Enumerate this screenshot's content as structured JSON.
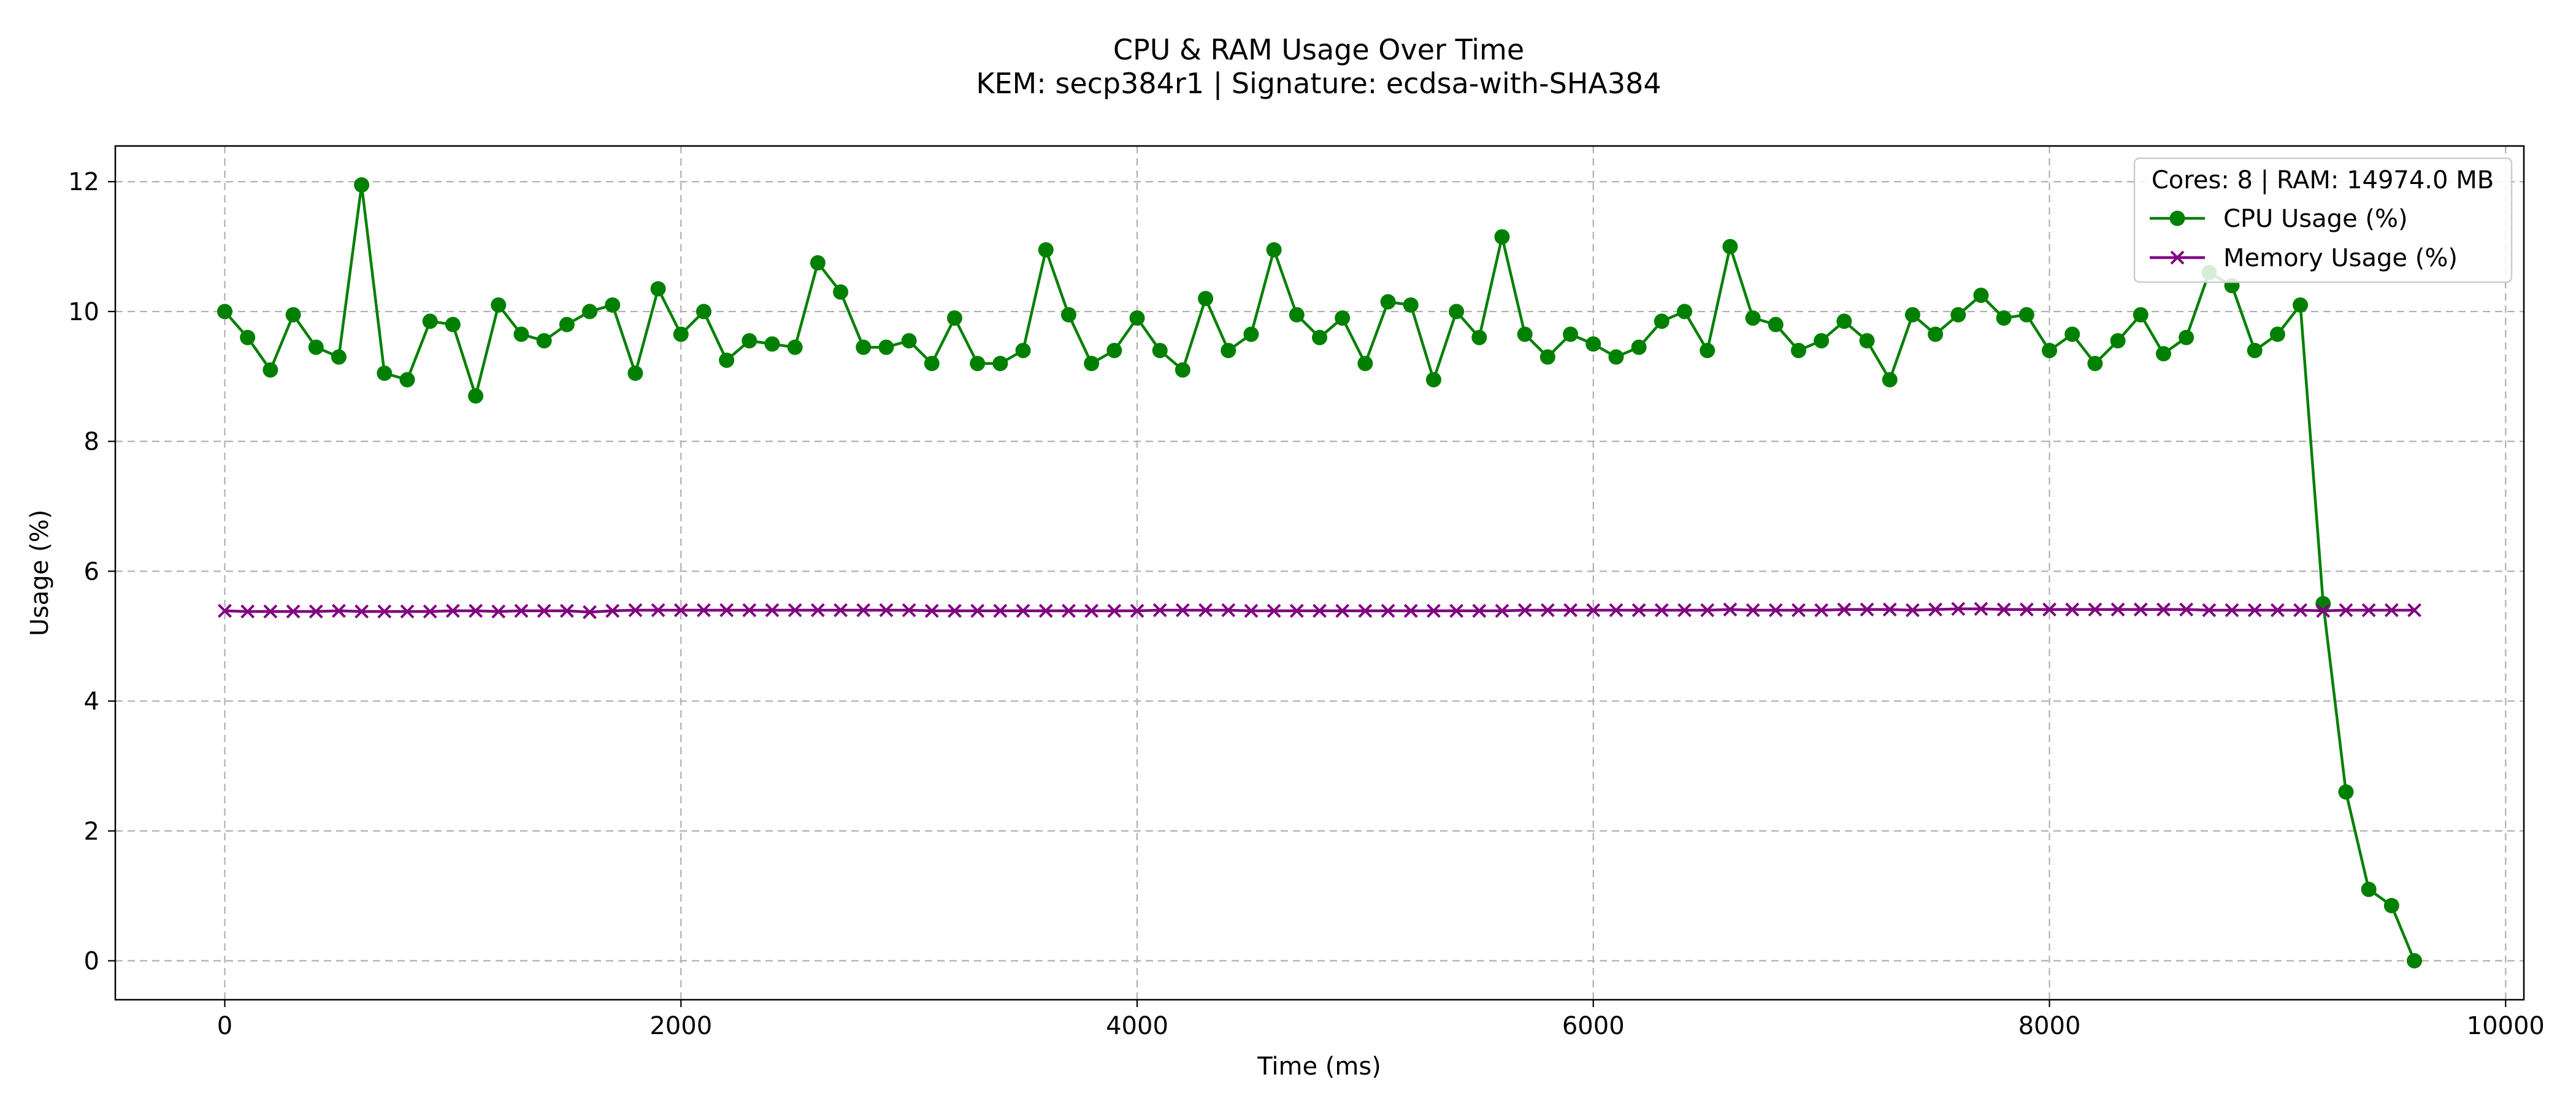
{
  "chart_data": {
    "type": "line",
    "title": "CPU & RAM Usage Over Time",
    "subtitle": "KEM: secp384r1 | Signature: ecdsa-with-SHA384",
    "xlabel": "Time (ms)",
    "ylabel": "Usage (%)",
    "xlim": [
      -480,
      10080
    ],
    "ylim": [
      -0.6,
      12.55
    ],
    "x_ticks": [
      0,
      2000,
      4000,
      6000,
      8000,
      10000
    ],
    "y_ticks": [
      0,
      2,
      4,
      6,
      8,
      10,
      12
    ],
    "grid": true,
    "legend_position": "top-right",
    "legend_title": "Cores: 8 | RAM: 14974.0 MB",
    "x": [
      0,
      100,
      200,
      300,
      400,
      500,
      600,
      700,
      800,
      900,
      1000,
      1100,
      1200,
      1300,
      1400,
      1500,
      1600,
      1700,
      1800,
      1900,
      2000,
      2100,
      2200,
      2300,
      2400,
      2500,
      2600,
      2700,
      2800,
      2900,
      3000,
      3100,
      3200,
      3300,
      3400,
      3500,
      3600,
      3700,
      3800,
      3900,
      4000,
      4100,
      4200,
      4300,
      4400,
      4500,
      4600,
      4700,
      4800,
      4900,
      5000,
      5100,
      5200,
      5300,
      5400,
      5500,
      5600,
      5700,
      5800,
      5900,
      6000,
      6100,
      6200,
      6300,
      6400,
      6500,
      6600,
      6700,
      6800,
      6900,
      7000,
      7100,
      7200,
      7300,
      7400,
      7500,
      7600,
      7700,
      7800,
      7900,
      8000,
      8100,
      8200,
      8300,
      8400,
      8500,
      8600,
      8700,
      8800,
      8900,
      9000,
      9100,
      9200,
      9300,
      9400,
      9500,
      9600
    ],
    "series": [
      {
        "name": "CPU Usage (%)",
        "color": "#008000",
        "marker": "circle",
        "values": [
          10.0,
          9.6,
          9.1,
          9.95,
          9.45,
          9.3,
          11.95,
          9.05,
          8.95,
          9.85,
          9.8,
          8.7,
          10.1,
          9.65,
          9.55,
          9.8,
          10.0,
          10.1,
          9.05,
          10.35,
          9.65,
          10.0,
          9.25,
          9.55,
          9.5,
          9.45,
          10.75,
          10.3,
          9.45,
          9.45,
          9.55,
          9.2,
          9.9,
          9.2,
          9.2,
          9.4,
          10.95,
          9.95,
          9.2,
          9.4,
          9.9,
          9.4,
          9.1,
          10.2,
          9.4,
          9.65,
          10.95,
          9.95,
          9.6,
          9.9,
          9.2,
          10.15,
          10.1,
          8.95,
          10.0,
          9.6,
          11.15,
          9.65,
          9.3,
          9.65,
          9.5,
          9.3,
          9.45,
          9.85,
          10.0,
          9.4,
          11.0,
          9.9,
          9.8,
          9.4,
          9.55,
          9.85,
          9.55,
          8.95,
          9.95,
          9.65,
          9.95,
          10.25,
          9.9,
          9.95,
          9.4,
          9.65,
          9.2,
          9.55,
          9.95,
          9.35,
          9.6,
          10.6,
          10.4,
          9.4,
          9.65,
          10.1,
          5.5,
          2.6,
          1.1,
          0.85,
          0.0
        ]
      },
      {
        "name": "Memory Usage (%)",
        "color": "#800080",
        "marker": "x",
        "values": [
          5.39,
          5.38,
          5.38,
          5.38,
          5.38,
          5.39,
          5.38,
          5.38,
          5.38,
          5.38,
          5.39,
          5.39,
          5.38,
          5.39,
          5.39,
          5.39,
          5.37,
          5.39,
          5.4,
          5.4,
          5.4,
          5.4,
          5.4,
          5.4,
          5.4,
          5.4,
          5.4,
          5.4,
          5.4,
          5.4,
          5.4,
          5.39,
          5.39,
          5.39,
          5.39,
          5.39,
          5.39,
          5.39,
          5.39,
          5.39,
          5.39,
          5.4,
          5.4,
          5.4,
          5.4,
          5.39,
          5.39,
          5.39,
          5.39,
          5.39,
          5.39,
          5.39,
          5.39,
          5.39,
          5.39,
          5.39,
          5.39,
          5.4,
          5.4,
          5.4,
          5.4,
          5.4,
          5.4,
          5.4,
          5.4,
          5.4,
          5.41,
          5.4,
          5.4,
          5.4,
          5.4,
          5.41,
          5.41,
          5.41,
          5.4,
          5.41,
          5.42,
          5.42,
          5.41,
          5.41,
          5.41,
          5.41,
          5.41,
          5.41,
          5.41,
          5.41,
          5.41,
          5.4,
          5.4,
          5.4,
          5.4,
          5.4,
          5.39,
          5.4,
          5.4,
          5.4,
          5.4
        ]
      }
    ]
  }
}
